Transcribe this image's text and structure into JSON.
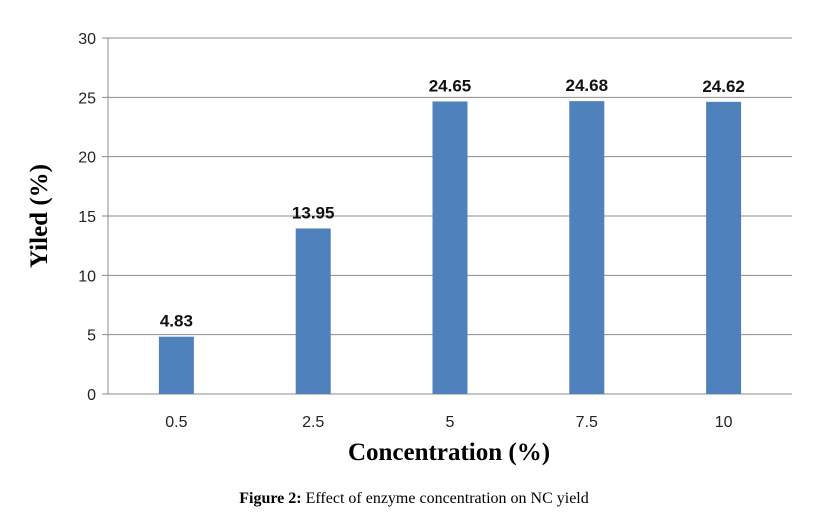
{
  "chart_data": {
    "type": "bar",
    "categories": [
      "0.5",
      "2.5",
      "5",
      "7.5",
      "10"
    ],
    "values": [
      4.83,
      13.95,
      24.65,
      24.68,
      24.62
    ],
    "data_labels": [
      "4.83",
      "13.95",
      "24.65",
      "24.68",
      "24.62"
    ],
    "xlabel": "Concentration (%)",
    "ylabel": "Yiled (%)",
    "ylim": [
      0,
      30
    ],
    "yticks": [
      0,
      5,
      10,
      15,
      20,
      25,
      30
    ],
    "grid": true,
    "bar_color": "#4F81BD",
    "gridline_color": "#8C8C8C"
  },
  "caption": {
    "label": "Figure 2:",
    "text": " Effect of enzyme concentration on NC yield"
  }
}
